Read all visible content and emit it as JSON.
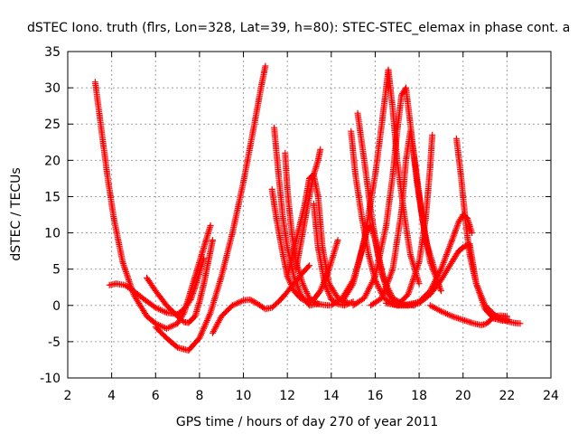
{
  "chart_data": {
    "type": "scatter",
    "title": "dSTEC Iono. truth (flrs, Lon=328, Lat=39, h=80): STEC-STEC_elemax in phase cont. a",
    "xlabel": "GPS time / hours of day 270 of year 2011",
    "ylabel": "dSTEC  / TECUs",
    "xlim": [
      2,
      24
    ],
    "ylim": [
      -10,
      35
    ],
    "xticks": [
      2,
      4,
      6,
      8,
      10,
      12,
      14,
      16,
      18,
      20,
      22,
      24
    ],
    "yticks": [
      -10,
      -5,
      0,
      5,
      10,
      15,
      20,
      25,
      30,
      35
    ],
    "grid": true,
    "marker": "+",
    "color": "#ff0000",
    "series": [
      {
        "x": [
          3.25,
          3.5,
          3.8,
          4.1,
          4.5,
          5.0,
          5.6,
          6.0,
          6.5,
          7.0,
          7.3,
          7.5,
          7.7,
          7.9,
          8.1,
          8.3,
          8.5
        ],
        "y": [
          30.8,
          25,
          18,
          12,
          6,
          1.5,
          -1.5,
          -2.5,
          -3.2,
          -2.5,
          -1,
          1,
          3,
          5,
          7,
          9,
          11
        ]
      },
      {
        "x": [
          3.9,
          4.2,
          4.6,
          5.0,
          5.5,
          6.0,
          6.5,
          7.0,
          7.3,
          7.6,
          7.8,
          8.0,
          8.2
        ],
        "y": [
          2.8,
          3.0,
          2.8,
          2.0,
          0.8,
          -0.3,
          -1.0,
          -1.2,
          -0.5,
          0.8,
          2.5,
          4.5,
          6.5
        ]
      },
      {
        "x": [
          5.6,
          6.0,
          6.5,
          7.0,
          7.3,
          7.5,
          7.8,
          8.0,
          8.2,
          8.4,
          8.6
        ],
        "y": [
          3.8,
          2.0,
          0.0,
          -1.5,
          -2.3,
          -2.4,
          -1.5,
          0.5,
          3.0,
          6.0,
          9.0
        ]
      },
      {
        "x": [
          6.0,
          6.5,
          7.0,
          7.5,
          8.0,
          8.5,
          9.0,
          9.5,
          10.0,
          10.5,
          10.8,
          11.0
        ],
        "y": [
          -3.0,
          -4.5,
          -5.8,
          -6.2,
          -4.5,
          -1.0,
          4.0,
          10.0,
          17.0,
          25.0,
          30.0,
          33.0
        ]
      },
      {
        "x": [
          8.6,
          9.0,
          9.5,
          10.0,
          10.3,
          10.6,
          11.0,
          11.3,
          11.6,
          11.9,
          12.3,
          12.7,
          13.0
        ],
        "y": [
          -3.8,
          -1.5,
          0.0,
          0.7,
          0.8,
          0.3,
          -0.5,
          -0.3,
          0.5,
          1.5,
          3.0,
          4.5,
          5.5
        ]
      },
      {
        "x": [
          11.3,
          11.5,
          11.8,
          12.0,
          12.3,
          12.6,
          12.9,
          13.2,
          13.5,
          13.9,
          14.3
        ],
        "y": [
          16,
          12,
          7,
          4,
          2,
          1,
          0.5,
          0.8,
          2.0,
          5.0,
          9.0
        ]
      },
      {
        "x": [
          11.4,
          11.6,
          11.8,
          12.0,
          12.3,
          12.6,
          13.0,
          13.4
        ],
        "y": [
          24.5,
          18,
          12,
          8,
          4,
          1.5,
          0.0,
          0.2
        ]
      },
      {
        "x": [
          11.9,
          12.0,
          12.2,
          12.4,
          12.7,
          13.0,
          13.3,
          13.6,
          13.9
        ],
        "y": [
          21,
          16,
          10,
          6,
          3,
          1,
          0.3,
          0.1,
          0.0
        ]
      },
      {
        "x": [
          12.0,
          12.4,
          12.8,
          13.0,
          13.2,
          13.4,
          13.6,
          13.9,
          14.3,
          14.8
        ],
        "y": [
          4.0,
          9.0,
          14.0,
          17.5,
          18.0,
          15.0,
          8.0,
          3.0,
          1.0,
          0.3
        ]
      },
      {
        "x": [
          12.4,
          12.7,
          13.0,
          13.2,
          13.4,
          13.5
        ],
        "y": [
          5,
          10,
          15,
          18,
          20,
          21.5
        ]
      },
      {
        "x": [
          13.2,
          13.4,
          13.7,
          14.0,
          14.3,
          14.6,
          15.0
        ],
        "y": [
          14.0,
          8.0,
          3.0,
          0.8,
          0.2,
          0.0,
          0.5
        ]
      },
      {
        "x": [
          14.0,
          14.5,
          15.0,
          15.3,
          15.6,
          15.8,
          16.0,
          16.3,
          16.6,
          17.0,
          17.5
        ],
        "y": [
          0.0,
          1.0,
          3.5,
          6.5,
          10.0,
          11.0,
          9.0,
          4.5,
          1.5,
          0.3,
          0.0
        ]
      },
      {
        "x": [
          14.9,
          15.1,
          15.4,
          15.7,
          16.0,
          16.4,
          16.8,
          17.2,
          17.8
        ],
        "y": [
          24.0,
          18.0,
          12.0,
          7.0,
          3.5,
          1.0,
          0.2,
          0.0,
          0.3
        ]
      },
      {
        "x": [
          15.2,
          15.5,
          15.8,
          16.1,
          16.4,
          16.8,
          17.3,
          17.8
        ],
        "y": [
          26.5,
          20.0,
          13.0,
          7.5,
          3.5,
          1.0,
          0.1,
          0.0
        ]
      },
      {
        "x": [
          14.5,
          15.0,
          15.5,
          16.0,
          16.3,
          16.5,
          16.6,
          16.8,
          17.0,
          17.3,
          17.6,
          18.0
        ],
        "y": [
          0.5,
          3.0,
          9.0,
          18.0,
          25.0,
          30.0,
          32.5,
          27.0,
          20.0,
          13.0,
          7.0,
          3.0
        ]
      },
      {
        "x": [
          15.0,
          15.5,
          16.0,
          16.5,
          16.8,
          17.0,
          17.2,
          17.4,
          17.6,
          17.9,
          18.3,
          18.8
        ],
        "y": [
          0.0,
          1.0,
          4.0,
          11.0,
          18.0,
          24.0,
          29.0,
          30.0,
          25.0,
          17.0,
          9.0,
          4.0
        ]
      },
      {
        "x": [
          15.8,
          16.3,
          16.8,
          17.2,
          17.4,
          17.6,
          17.8,
          18.1,
          18.5,
          19.0
        ],
        "y": [
          0.0,
          1.0,
          5.0,
          13.0,
          20.0,
          24.0,
          20.0,
          13.0,
          6.0,
          2.0
        ]
      },
      {
        "x": [
          17.0,
          17.5,
          18.0,
          18.3,
          18.5,
          18.6
        ],
        "y": [
          0.0,
          1.5,
          6.0,
          12.0,
          19.0,
          23.5
        ]
      },
      {
        "x": [
          16.5,
          17.0,
          17.5,
          18.0,
          18.5,
          19.0,
          19.5,
          19.8,
          20.0,
          20.2,
          20.4
        ],
        "y": [
          0.3,
          0.0,
          0.0,
          0.5,
          2.0,
          5.0,
          9.0,
          11.5,
          12.5,
          12.0,
          10.0
        ]
      },
      {
        "x": [
          19.7,
          19.9,
          20.1,
          20.3,
          20.6,
          21.0,
          21.5,
          22.0,
          22.3,
          22.6
        ],
        "y": [
          23.0,
          18.0,
          12.0,
          7.0,
          3.0,
          0.0,
          -1.5,
          -2.2,
          -2.4,
          -2.5
        ]
      },
      {
        "x": [
          17.5,
          18.0,
          18.5,
          19.0,
          19.5,
          19.8,
          20.0,
          20.3,
          20.6,
          21.0,
          21.4,
          21.8,
          22.1
        ],
        "y": [
          0.0,
          0.3,
          1.5,
          3.5,
          6.0,
          7.5,
          8.0,
          8.5,
          3.0,
          -0.5,
          -1.8,
          -2.1,
          -2.0
        ]
      },
      {
        "x": [
          18.5,
          19.0,
          19.5,
          20.0,
          20.5,
          20.8,
          21.0,
          21.2,
          21.4,
          21.7,
          22.0
        ],
        "y": [
          0.0,
          -0.8,
          -1.5,
          -2.0,
          -2.5,
          -2.7,
          -2.6,
          -2.2,
          -1.5,
          -1.4,
          -1.5
        ]
      }
    ]
  }
}
